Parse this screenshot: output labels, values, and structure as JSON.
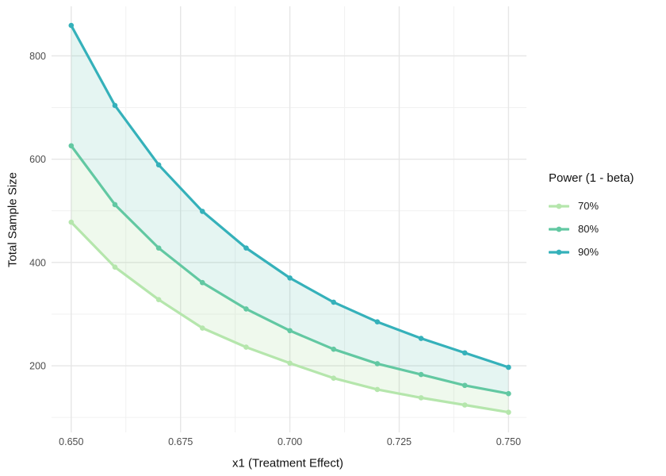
{
  "chart_data": {
    "type": "line",
    "title": "",
    "xlabel": "x1 (Treatment Effect)",
    "ylabel": "Total Sample Size",
    "legend": {
      "title": "Power (1 - beta)",
      "position": "right"
    },
    "x": [
      0.65,
      0.66,
      0.67,
      0.68,
      0.69,
      0.7,
      0.71,
      0.72,
      0.73,
      0.74,
      0.75
    ],
    "series": [
      {
        "name": "70%",
        "color": "#b5e6ac",
        "values": [
          478,
          391,
          328,
          273,
          236,
          205,
          176,
          154,
          138,
          124,
          110
        ]
      },
      {
        "name": "80%",
        "color": "#62c8a2",
        "values": [
          626,
          512,
          428,
          361,
          310,
          268,
          232,
          204,
          183,
          162,
          146
        ]
      },
      {
        "name": "90%",
        "color": "#35b1ba",
        "values": [
          859,
          704,
          589,
          499,
          428,
          370,
          323,
          285,
          253,
          225,
          197
        ]
      }
    ],
    "bands": [
      {
        "lower": "70%",
        "upper": "80%",
        "fill": "rgba(140,215,130,0.14)"
      },
      {
        "lower": "80%",
        "upper": "90%",
        "fill": "rgba(80,190,170,0.15)"
      }
    ],
    "x_ticks": {
      "values": [
        0.65,
        0.675,
        0.7,
        0.725,
        0.75
      ],
      "labels": [
        "0.650",
        "0.675",
        "0.700",
        "0.725",
        "0.750"
      ],
      "minor": [
        0.6625,
        0.6875,
        0.7125,
        0.7375
      ]
    },
    "y_ticks": {
      "values": [
        200,
        400,
        600,
        800
      ],
      "labels": [
        "200",
        "400",
        "600",
        "800"
      ],
      "minor": [
        100,
        300,
        500,
        700
      ]
    },
    "xlim": [
      0.6455,
      0.7541
    ],
    "ylim": [
      71,
      896
    ],
    "grid": true,
    "background": "#ffffff",
    "gridline_color_major": "#e6e6e6",
    "gridline_color_minor": "#f1f1f1",
    "tick_label_color": "#4d4d4d",
    "title_color": "#111111"
  }
}
